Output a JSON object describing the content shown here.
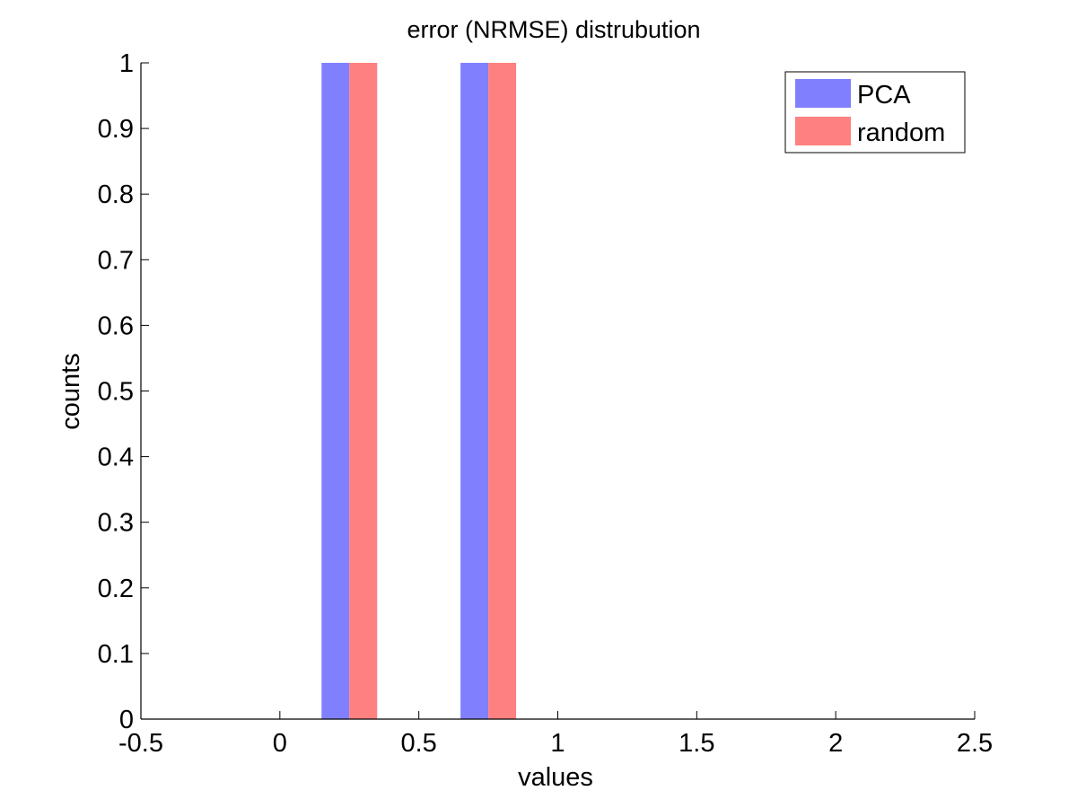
{
  "chart_data": {
    "type": "bar",
    "title": "error (NRMSE) distrubution",
    "xlabel": "values",
    "ylabel": "counts",
    "xlim": [
      -0.5,
      2.5
    ],
    "ylim": [
      0,
      1
    ],
    "xticks": [
      -0.5,
      0,
      0.5,
      1,
      1.5,
      2,
      2.5
    ],
    "xtick_labels": [
      "-0.5",
      "0",
      "0.5",
      "1",
      "1.5",
      "2",
      "2.5"
    ],
    "yticks": [
      0,
      0.1,
      0.2,
      0.3,
      0.4,
      0.5,
      0.6,
      0.7,
      0.8,
      0.9,
      1
    ],
    "ytick_labels": [
      "0",
      "0.1",
      "0.2",
      "0.3",
      "0.4",
      "0.5",
      "0.6",
      "0.7",
      "0.8",
      "0.9",
      "1"
    ],
    "bar_width": 0.1,
    "grid": false,
    "legend_position": "top-right",
    "series": [
      {
        "name": "PCA",
        "color": "#8080ff",
        "bars": [
          {
            "x": 0.2,
            "value": 1
          },
          {
            "x": 0.7,
            "value": 1
          }
        ]
      },
      {
        "name": "random",
        "color": "#ff8080",
        "bars": [
          {
            "x": 0.3,
            "value": 1
          },
          {
            "x": 0.8,
            "value": 1
          }
        ]
      }
    ]
  }
}
